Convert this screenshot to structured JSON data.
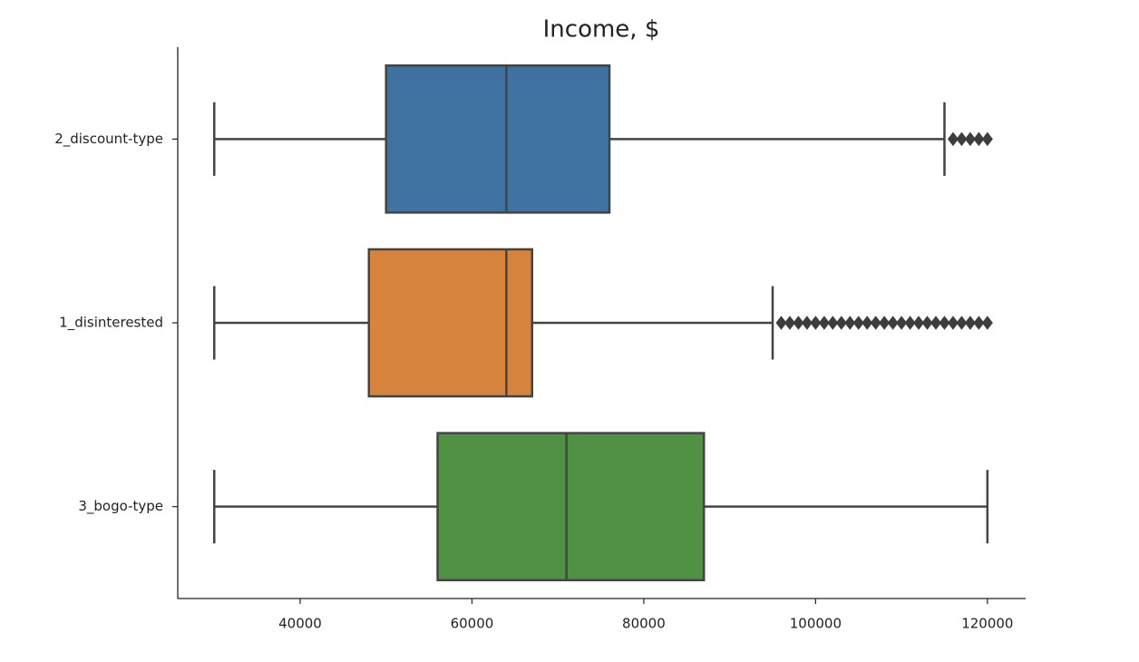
{
  "chart_data": {
    "type": "boxplot",
    "title": "Income, $",
    "categories": [
      "2_discount-type",
      "1_disinterested",
      "3_bogo-type"
    ],
    "boxes": [
      {
        "whislo": 30000,
        "q1": 50000,
        "med": 64000,
        "q3": 76000,
        "whishi": 115000,
        "color": "#3f72a0",
        "fliers": [
          116000,
          117000,
          118000,
          119000,
          120000
        ]
      },
      {
        "whislo": 30000,
        "q1": 48000,
        "med": 64000,
        "q3": 67000,
        "whishi": 95000,
        "color": "#d6843d",
        "fliers": [
          96000,
          97000,
          98000,
          99000,
          100000,
          101000,
          102000,
          103000,
          104000,
          105000,
          106000,
          107000,
          108000,
          109000,
          110000,
          111000,
          112000,
          113000,
          114000,
          115000,
          116000,
          117000,
          118000,
          119000,
          120000
        ]
      },
      {
        "whislo": 30000,
        "q1": 56000,
        "med": 71000,
        "q3": 87000,
        "whishi": 120000,
        "color": "#519144",
        "fliers": []
      }
    ],
    "xlim": [
      25750,
      124450
    ],
    "xticks": [
      40000,
      60000,
      80000,
      100000,
      120000
    ]
  }
}
